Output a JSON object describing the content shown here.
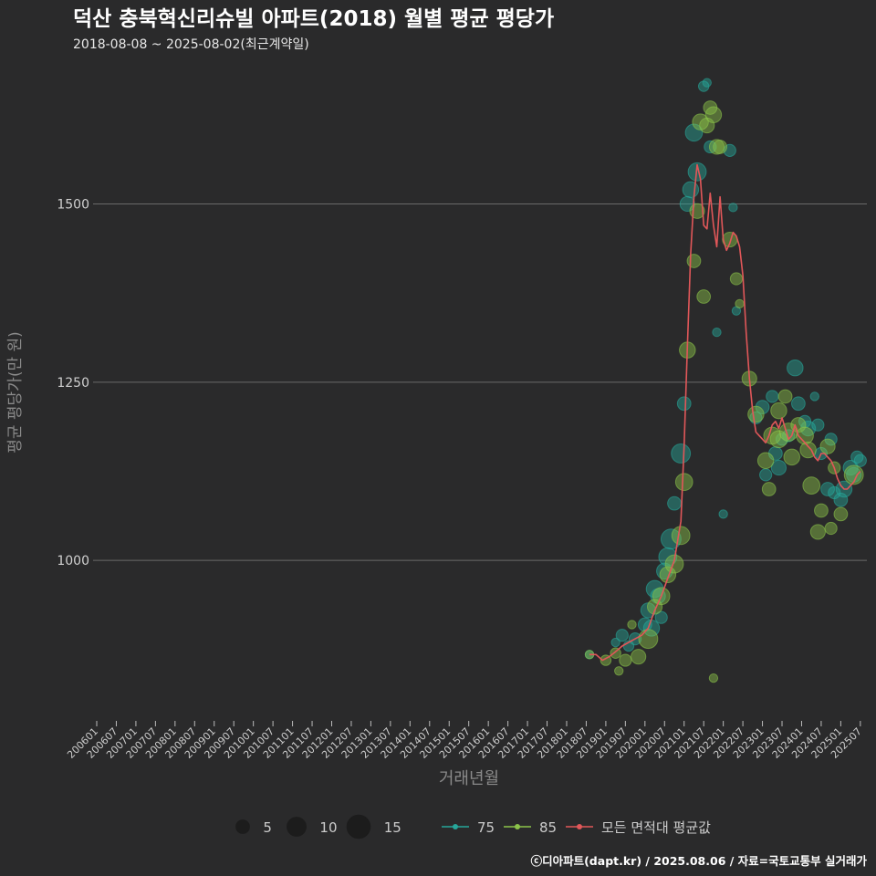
{
  "chart_data": {
    "type": "scatter",
    "title": "덕산 충북혁신리슈빌 아파트(2018) 월별 평균 평당가",
    "subtitle": "2018-08-08 ~ 2025-08-02(최근계약일)",
    "xlabel": "거래년월",
    "ylabel": "평균 평당가(만 원)",
    "ylim": [
      775,
      1690
    ],
    "yticks": [
      1000,
      1250,
      1500
    ],
    "xlim": [
      "2006-01",
      "2025-09"
    ],
    "xticks": [
      "200601",
      "200607",
      "200701",
      "200707",
      "200801",
      "200807",
      "200901",
      "200907",
      "201001",
      "201007",
      "201101",
      "201107",
      "201201",
      "201207",
      "201301",
      "201307",
      "201401",
      "201407",
      "201501",
      "201507",
      "201601",
      "201607",
      "201701",
      "201707",
      "201801",
      "201807",
      "201901",
      "201907",
      "202001",
      "202007",
      "202101",
      "202107",
      "202201",
      "202207",
      "202301",
      "202307",
      "202401",
      "202407",
      "202501",
      "202507"
    ],
    "size_legend": [
      {
        "label": "5",
        "value": 5
      },
      {
        "label": "10",
        "value": 10
      },
      {
        "label": "15",
        "value": 15
      }
    ],
    "series": [
      {
        "name": "75",
        "color": "#26a69a",
        "points": [
          [
            "2018-08",
            868,
            2
          ],
          [
            "2019-04",
            885,
            2
          ],
          [
            "2019-06",
            895,
            4
          ],
          [
            "2019-08",
            880,
            3
          ],
          [
            "2019-10",
            890,
            4
          ],
          [
            "2020-01",
            910,
            5
          ],
          [
            "2020-02",
            930,
            6
          ],
          [
            "2020-03",
            905,
            7
          ],
          [
            "2020-04",
            960,
            8
          ],
          [
            "2020-05",
            950,
            6
          ],
          [
            "2020-06",
            920,
            4
          ],
          [
            "2020-07",
            985,
            7
          ],
          [
            "2020-08",
            1005,
            9
          ],
          [
            "2020-09",
            1030,
            11
          ],
          [
            "2020-10",
            1080,
            5
          ],
          [
            "2020-12",
            1150,
            10
          ],
          [
            "2021-01",
            1220,
            5
          ],
          [
            "2021-02",
            1500,
            6
          ],
          [
            "2021-03",
            1520,
            7
          ],
          [
            "2021-04",
            1600,
            8
          ],
          [
            "2021-05",
            1545,
            9
          ],
          [
            "2021-07",
            1665,
            3
          ],
          [
            "2021-08",
            1670,
            2
          ],
          [
            "2021-09",
            1580,
            4
          ],
          [
            "2021-11",
            1320,
            2
          ],
          [
            "2022-01",
            1065,
            2
          ],
          [
            "2022-03",
            1575,
            4
          ],
          [
            "2022-04",
            1495,
            2
          ],
          [
            "2022-05",
            1350,
            2
          ],
          [
            "2022-11",
            1200,
            4
          ],
          [
            "2023-01",
            1215,
            5
          ],
          [
            "2023-02",
            1120,
            4
          ],
          [
            "2023-04",
            1230,
            4
          ],
          [
            "2023-05",
            1150,
            5
          ],
          [
            "2023-06",
            1130,
            6
          ],
          [
            "2023-07",
            1170,
            4
          ],
          [
            "2023-09",
            1175,
            4
          ],
          [
            "2023-11",
            1270,
            7
          ],
          [
            "2023-12",
            1220,
            5
          ],
          [
            "2024-02",
            1195,
            4
          ],
          [
            "2024-03",
            1185,
            6
          ],
          [
            "2024-05",
            1230,
            2
          ],
          [
            "2024-06",
            1190,
            4
          ],
          [
            "2024-07",
            1150,
            4
          ],
          [
            "2024-09",
            1100,
            5
          ],
          [
            "2024-10",
            1170,
            4
          ],
          [
            "2024-11",
            1095,
            4
          ],
          [
            "2025-01",
            1085,
            5
          ],
          [
            "2025-02",
            1100,
            7
          ],
          [
            "2025-04",
            1130,
            6
          ],
          [
            "2025-05",
            1120,
            6
          ],
          [
            "2025-06",
            1145,
            4
          ],
          [
            "2025-07",
            1140,
            4
          ]
        ]
      },
      {
        "name": "85",
        "color": "#8bc34a",
        "points": [
          [
            "2018-08",
            868,
            2
          ],
          [
            "2019-01",
            860,
            3
          ],
          [
            "2019-04",
            870,
            3
          ],
          [
            "2019-05",
            845,
            2
          ],
          [
            "2019-07",
            860,
            4
          ],
          [
            "2019-09",
            910,
            2
          ],
          [
            "2019-11",
            865,
            6
          ],
          [
            "2020-02",
            890,
            10
          ],
          [
            "2020-04",
            935,
            6
          ],
          [
            "2020-06",
            950,
            8
          ],
          [
            "2020-08",
            980,
            7
          ],
          [
            "2020-10",
            995,
            9
          ],
          [
            "2020-12",
            1035,
            9
          ],
          [
            "2021-01",
            1110,
            8
          ],
          [
            "2021-02",
            1295,
            7
          ],
          [
            "2021-04",
            1420,
            5
          ],
          [
            "2021-05",
            1490,
            6
          ],
          [
            "2021-06",
            1615,
            7
          ],
          [
            "2021-07",
            1370,
            5
          ],
          [
            "2021-08",
            1610,
            6
          ],
          [
            "2021-09",
            1635,
            5
          ],
          [
            "2021-10",
            1625,
            7
          ],
          [
            "2021-11",
            1580,
            6
          ],
          [
            "2021-12",
            1580,
            5
          ],
          [
            "2021-10",
            835,
            2
          ],
          [
            "2022-03",
            1450,
            6
          ],
          [
            "2022-05",
            1395,
            4
          ],
          [
            "2022-06",
            1360,
            2
          ],
          [
            "2022-09",
            1255,
            6
          ],
          [
            "2022-11",
            1205,
            7
          ],
          [
            "2023-02",
            1140,
            7
          ],
          [
            "2023-03",
            1100,
            5
          ],
          [
            "2023-04",
            1175,
            8
          ],
          [
            "2023-06",
            1210,
            7
          ],
          [
            "2023-06",
            1170,
            8
          ],
          [
            "2023-08",
            1230,
            5
          ],
          [
            "2023-09",
            1180,
            9
          ],
          [
            "2023-10",
            1145,
            7
          ],
          [
            "2023-12",
            1190,
            6
          ],
          [
            "2024-02",
            1175,
            8
          ],
          [
            "2024-03",
            1155,
            7
          ],
          [
            "2024-04",
            1105,
            8
          ],
          [
            "2024-06",
            1040,
            6
          ],
          [
            "2024-07",
            1070,
            5
          ],
          [
            "2024-09",
            1160,
            6
          ],
          [
            "2024-10",
            1045,
            4
          ],
          [
            "2024-11",
            1130,
            4
          ],
          [
            "2025-01",
            1065,
            5
          ],
          [
            "2025-05",
            1120,
            10
          ]
        ]
      }
    ],
    "average_series": {
      "name": "모든 면적대 평균값",
      "color": "#e15759",
      "points": [
        [
          "2018-08",
          868
        ],
        [
          "2018-10",
          868
        ],
        [
          "2018-12",
          860
        ],
        [
          "2019-02",
          865
        ],
        [
          "2019-04",
          872
        ],
        [
          "2019-06",
          880
        ],
        [
          "2019-08",
          885
        ],
        [
          "2019-10",
          890
        ],
        [
          "2019-12",
          895
        ],
        [
          "2020-02",
          905
        ],
        [
          "2020-04",
          930
        ],
        [
          "2020-06",
          950
        ],
        [
          "2020-08",
          975
        ],
        [
          "2020-10",
          1000
        ],
        [
          "2020-12",
          1055
        ],
        [
          "2021-01",
          1160
        ],
        [
          "2021-02",
          1300
        ],
        [
          "2021-03",
          1430
        ],
        [
          "2021-04",
          1510
        ],
        [
          "2021-05",
          1555
        ],
        [
          "2021-06",
          1535
        ],
        [
          "2021-07",
          1470
        ],
        [
          "2021-08",
          1465
        ],
        [
          "2021-09",
          1515
        ],
        [
          "2021-10",
          1470
        ],
        [
          "2021-11",
          1440
        ],
        [
          "2021-12",
          1510
        ],
        [
          "2022-01",
          1450
        ],
        [
          "2022-02",
          1435
        ],
        [
          "2022-03",
          1445
        ],
        [
          "2022-04",
          1460
        ],
        [
          "2022-05",
          1455
        ],
        [
          "2022-06",
          1440
        ],
        [
          "2022-07",
          1400
        ],
        [
          "2022-08",
          1320
        ],
        [
          "2022-09",
          1255
        ],
        [
          "2022-10",
          1210
        ],
        [
          "2022-11",
          1180
        ],
        [
          "2022-12",
          1175
        ],
        [
          "2023-01",
          1170
        ],
        [
          "2023-02",
          1165
        ],
        [
          "2023-03",
          1175
        ],
        [
          "2023-04",
          1190
        ],
        [
          "2023-05",
          1195
        ],
        [
          "2023-06",
          1185
        ],
        [
          "2023-07",
          1200
        ],
        [
          "2023-08",
          1185
        ],
        [
          "2023-09",
          1170
        ],
        [
          "2023-10",
          1175
        ],
        [
          "2023-11",
          1190
        ],
        [
          "2023-12",
          1175
        ],
        [
          "2024-01",
          1170
        ],
        [
          "2024-02",
          1165
        ],
        [
          "2024-03",
          1160
        ],
        [
          "2024-04",
          1155
        ],
        [
          "2024-05",
          1145
        ],
        [
          "2024-06",
          1140
        ],
        [
          "2024-07",
          1150
        ],
        [
          "2024-08",
          1150
        ],
        [
          "2024-09",
          1145
        ],
        [
          "2024-10",
          1140
        ],
        [
          "2024-11",
          1130
        ],
        [
          "2024-12",
          1115
        ],
        [
          "2025-01",
          1105
        ],
        [
          "2025-02",
          1100
        ],
        [
          "2025-03",
          1100
        ],
        [
          "2025-04",
          1105
        ],
        [
          "2025-05",
          1110
        ],
        [
          "2025-06",
          1120
        ],
        [
          "2025-07",
          1125
        ]
      ]
    },
    "credit": "ⓒ디아파트(dapt.kr) / 2025.08.06 / 자료=국토교통부 실거래가"
  }
}
